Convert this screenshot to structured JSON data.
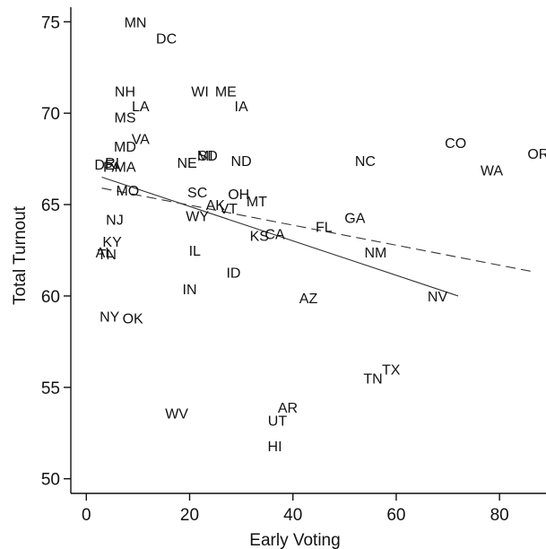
{
  "chart_data": {
    "type": "scatter",
    "xlabel": "Early Voting",
    "ylabel": "Total Turnout",
    "xlim": [
      -3,
      89
    ],
    "ylim": [
      49.2,
      75.8
    ],
    "xticks": [
      0,
      20,
      40,
      60,
      80
    ],
    "yticks": [
      50,
      55,
      60,
      65,
      70,
      75
    ],
    "grid": false,
    "points": [
      {
        "label": "MN",
        "x": 9.5,
        "y": 75.0
      },
      {
        "label": "DC",
        "x": 15.5,
        "y": 74.1
      },
      {
        "label": "NH",
        "x": 7.5,
        "y": 71.2
      },
      {
        "label": "WI",
        "x": 22.0,
        "y": 71.2
      },
      {
        "label": "ME",
        "x": 27.0,
        "y": 71.2
      },
      {
        "label": "LA",
        "x": 10.5,
        "y": 70.4
      },
      {
        "label": "IA",
        "x": 30.0,
        "y": 70.4
      },
      {
        "label": "MS",
        "x": 7.5,
        "y": 69.8
      },
      {
        "label": "VA",
        "x": 10.5,
        "y": 68.6
      },
      {
        "label": "MD",
        "x": 7.5,
        "y": 68.2
      },
      {
        "label": "SD",
        "x": 23.5,
        "y": 67.7
      },
      {
        "label": "MI",
        "x": 23.0,
        "y": 67.7
      },
      {
        "label": "ND",
        "x": 30.0,
        "y": 67.4
      },
      {
        "label": "NE",
        "x": 19.5,
        "y": 67.3
      },
      {
        "label": "NC",
        "x": 54.0,
        "y": 67.4
      },
      {
        "label": "CO",
        "x": 71.5,
        "y": 68.4
      },
      {
        "label": "OR",
        "x": 87.5,
        "y": 67.8
      },
      {
        "label": "WA",
        "x": 78.5,
        "y": 66.9
      },
      {
        "label": "DE",
        "x": 3.5,
        "y": 67.2
      },
      {
        "label": "RI",
        "x": 5.0,
        "y": 67.3
      },
      {
        "label": "MA",
        "x": 7.5,
        "y": 67.1
      },
      {
        "label": "PA",
        "x": 5.0,
        "y": 67.1
      },
      {
        "label": "MO",
        "x": 8.0,
        "y": 65.8
      },
      {
        "label": "SC",
        "x": 21.5,
        "y": 65.7
      },
      {
        "label": "OH",
        "x": 29.5,
        "y": 65.6
      },
      {
        "label": "MT",
        "x": 33.0,
        "y": 65.2
      },
      {
        "label": "AK",
        "x": 25.0,
        "y": 65.0
      },
      {
        "label": "VT",
        "x": 27.5,
        "y": 64.8
      },
      {
        "label": "WY",
        "x": 21.5,
        "y": 64.4
      },
      {
        "label": "NJ",
        "x": 5.5,
        "y": 64.2
      },
      {
        "label": "GA",
        "x": 52.0,
        "y": 64.3
      },
      {
        "label": "FL",
        "x": 46.0,
        "y": 63.8
      },
      {
        "label": "KS",
        "x": 33.5,
        "y": 63.3
      },
      {
        "label": "CA",
        "x": 36.5,
        "y": 63.4
      },
      {
        "label": "KY",
        "x": 5.0,
        "y": 63.0
      },
      {
        "label": "IL",
        "x": 21.0,
        "y": 62.5
      },
      {
        "label": "NM",
        "x": 56.0,
        "y": 62.4
      },
      {
        "label": "AL",
        "x": 3.5,
        "y": 62.4
      },
      {
        "label": "TN",
        "x": 4.0,
        "y": 62.3
      },
      {
        "label": "ID",
        "x": 28.5,
        "y": 61.3
      },
      {
        "label": "IN",
        "x": 20.0,
        "y": 60.4
      },
      {
        "label": "AZ",
        "x": 43.0,
        "y": 59.9
      },
      {
        "label": "NV",
        "x": 68.0,
        "y": 60.0
      },
      {
        "label": "NY",
        "x": 4.5,
        "y": 58.9
      },
      {
        "label": "OK",
        "x": 9.0,
        "y": 58.8
      },
      {
        "label": "TX",
        "x": 59.0,
        "y": 56.0
      },
      {
        "label": "TN",
        "x": 55.5,
        "y": 55.5
      },
      {
        "label": "WV",
        "x": 17.5,
        "y": 53.6
      },
      {
        "label": "AR",
        "x": 39.0,
        "y": 53.9
      },
      {
        "label": "UT",
        "x": 37.0,
        "y": 53.2
      },
      {
        "label": "HI",
        "x": 36.5,
        "y": 51.8
      }
    ],
    "fit_lines": [
      {
        "style": "solid",
        "x": [
          3,
          72
        ],
        "y": [
          66.5,
          60.0
        ]
      },
      {
        "style": "dashed",
        "x": [
          3,
          87
        ],
        "y": [
          65.9,
          61.3
        ]
      }
    ]
  }
}
